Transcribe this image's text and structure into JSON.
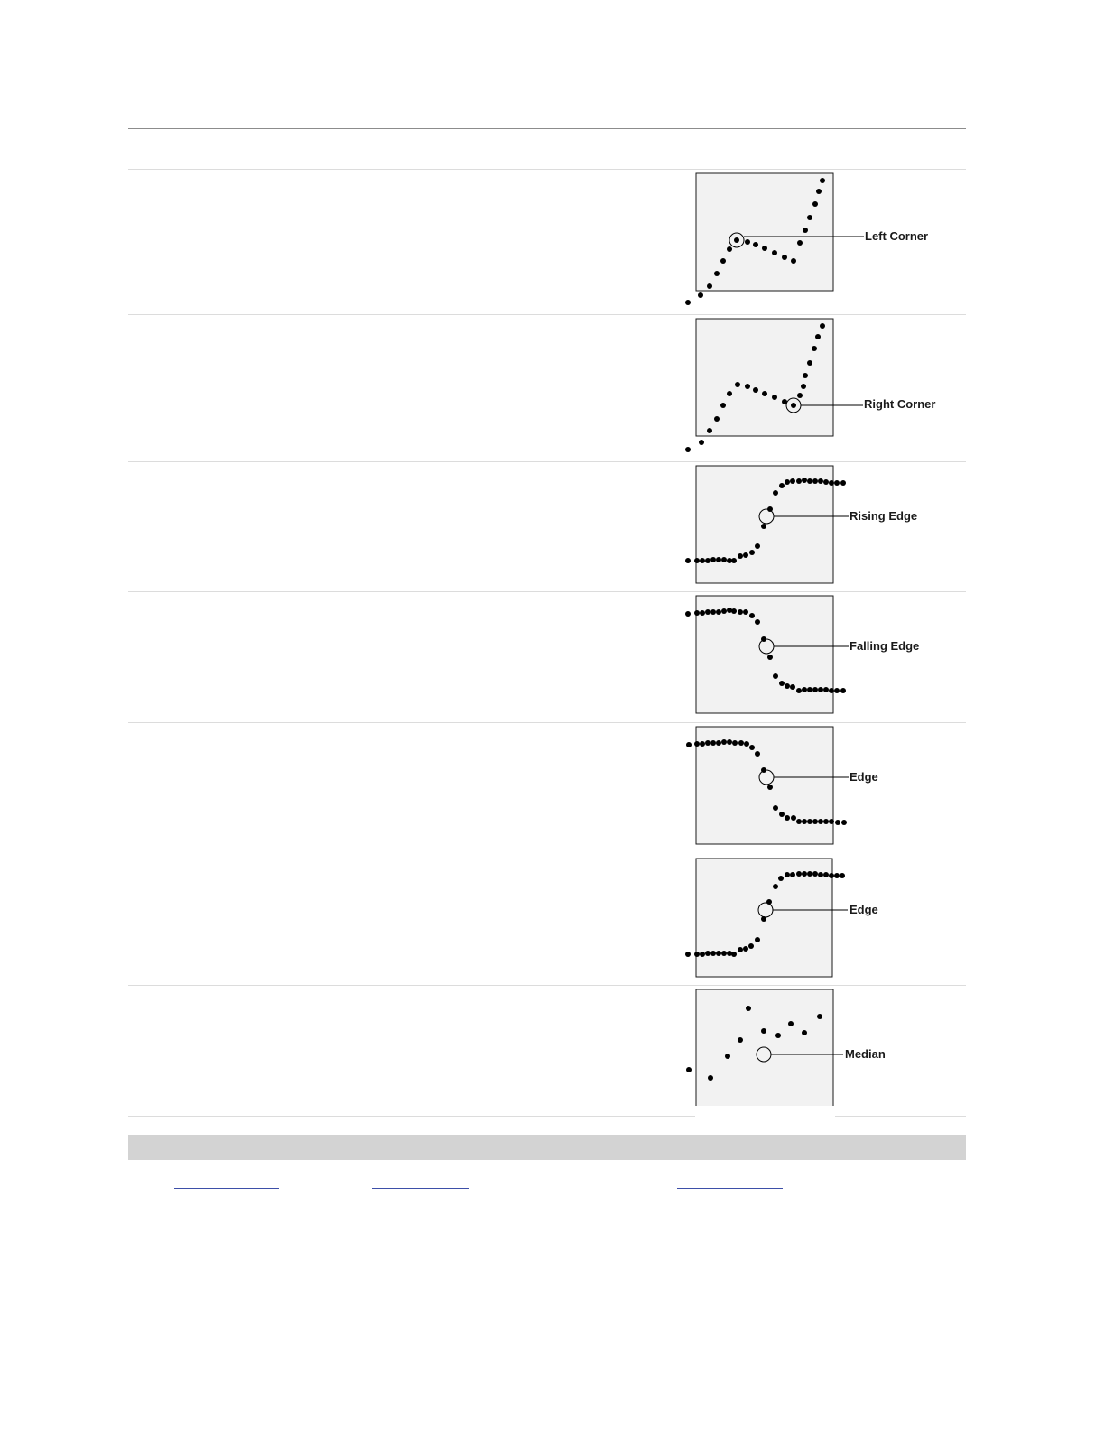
{
  "diagrams": [
    {
      "id": "left-corner",
      "label": "Left Corner"
    },
    {
      "id": "right-corner",
      "label": "Right Corner"
    },
    {
      "id": "rising-edge",
      "label": "Rising Edge"
    },
    {
      "id": "falling-edge",
      "label": "Falling Edge"
    },
    {
      "id": "edge-falling",
      "label": "Edge"
    },
    {
      "id": "edge-rising",
      "label": "Edge"
    },
    {
      "id": "median",
      "label": "Median"
    }
  ],
  "colors": {
    "plot_bg": "#f2f2f2",
    "point": "#000000",
    "frame": "#1a1a1a"
  }
}
